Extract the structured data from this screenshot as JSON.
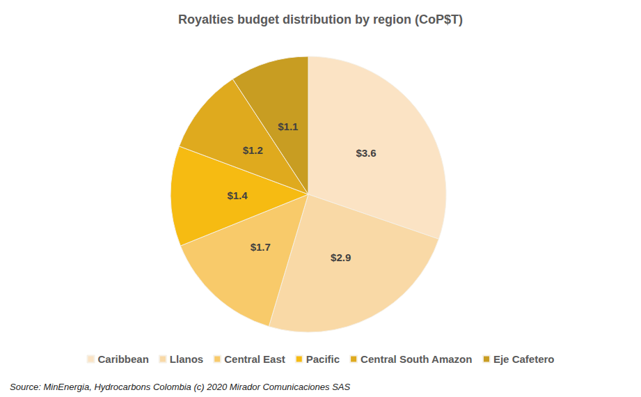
{
  "chart_data": {
    "type": "pie",
    "title": "Royalties budget distribution by region (CoP$T)",
    "categories": [
      "Caribbean",
      "Llanos",
      "Central East",
      "Pacific",
      "Central South Amazon",
      "Eje Cafetero"
    ],
    "values": [
      3.6,
      2.9,
      1.7,
      1.4,
      1.2,
      1.1
    ],
    "value_labels": [
      "$3.6",
      "$2.9",
      "$1.7",
      "$1.4",
      "$1.2",
      "$1.1"
    ],
    "colors": [
      "#fbe3c4",
      "#f9d9a6",
      "#f8ca6a",
      "#f6bb12",
      "#dfaa1e",
      "#c89d22"
    ],
    "legend": "bottom",
    "data_labels": true,
    "annotations": [
      "Source: MinEnergia, Hydrocarbons Colombia (c) 2020 Mirador Comunicaciones SAS"
    ]
  }
}
